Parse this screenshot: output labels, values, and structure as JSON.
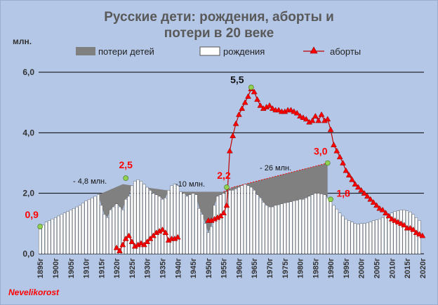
{
  "chart_data": {
    "type": "bar",
    "title_line1": "Русские дети: рождения, аборты  и",
    "title_line2": "потери в 20 веке",
    "ylabel": "млн.",
    "ylim": [
      0,
      6
    ],
    "yticks": [
      "0,0",
      "2,0",
      "4,0",
      "6,0"
    ],
    "legend": {
      "losses": "потери детей",
      "births": "рождения",
      "abortions": "аборты"
    },
    "x_labels": [
      "1895г",
      "1900г",
      "1905г",
      "1910г",
      "1915г",
      "1920г",
      "1925г",
      "1930г",
      "1935г",
      "1940г",
      "1945г",
      "1950г",
      "1955г",
      "1960г",
      "1965г",
      "1970г",
      "1975г",
      "1980г",
      "1985г",
      "1990г",
      "1995г",
      "2000г",
      "2005г",
      "2010г",
      "2015г",
      "2020г"
    ],
    "x_start": 1895,
    "births": [
      0.85,
      0.95,
      1.05,
      1.1,
      1.15,
      1.2,
      1.25,
      1.3,
      1.35,
      1.4,
      1.45,
      1.5,
      1.55,
      1.6,
      1.68,
      1.75,
      1.8,
      1.85,
      1.9,
      1.95,
      1.6,
      1.3,
      1.2,
      1.45,
      1.55,
      1.65,
      1.55,
      1.45,
      1.8,
      1.9,
      2.25,
      2.4,
      2.45,
      2.4,
      2.3,
      2.2,
      2.1,
      2.0,
      1.95,
      1.9,
      1.8,
      1.85,
      2.1,
      2.25,
      2.3,
      2.25,
      2.05,
      2.0,
      1.9,
      1.95,
      2.0,
      1.95,
      1.5,
      1.3,
      1.0,
      0.7,
      0.9,
      1.6,
      1.9,
      1.95,
      2.0,
      2.05,
      2.1,
      2.1,
      2.15,
      2.2,
      2.25,
      2.3,
      2.25,
      2.2,
      2.1,
      1.95,
      1.85,
      1.7,
      1.6,
      1.55,
      1.55,
      1.6,
      1.62,
      1.65,
      1.68,
      1.7,
      1.72,
      1.75,
      1.77,
      1.8,
      1.8,
      1.85,
      1.9,
      1.95,
      2.0,
      2.0,
      1.98,
      1.95,
      1.85,
      1.75,
      1.6,
      1.48,
      1.35,
      1.25,
      1.15,
      1.1,
      1.05,
      1.0,
      0.98,
      1.0,
      1.0,
      1.02,
      1.05,
      1.1,
      1.12,
      1.15,
      1.2,
      1.25,
      1.3,
      1.35,
      1.4,
      1.42,
      1.45,
      1.45,
      1.42,
      1.38,
      1.3,
      1.2,
      1.1
    ],
    "losses_upper": [
      {
        "x": 1895,
        "y": 0.85
      },
      {
        "x": 1914,
        "y": 1.95
      },
      {
        "x": 1922,
        "y": 2.3
      },
      {
        "x": 1940,
        "y": 2.05
      },
      {
        "x": 1955,
        "y": 2.05
      },
      {
        "x": 1958,
        "y": 2.2
      },
      {
        "x": 1989,
        "y": 3.0
      }
    ],
    "abortions": [
      {
        "x": 1920,
        "y": 0.2
      },
      {
        "x": 1921,
        "y": 0.1
      },
      {
        "x": 1922,
        "y": 0.3
      },
      {
        "x": 1923,
        "y": 0.5
      },
      {
        "x": 1924,
        "y": 0.6
      },
      {
        "x": 1925,
        "y": 0.4
      },
      {
        "x": 1926,
        "y": 0.25
      },
      {
        "x": 1927,
        "y": 0.3
      },
      {
        "x": 1928,
        "y": 0.35
      },
      {
        "x": 1929,
        "y": 0.3
      },
      {
        "x": 1930,
        "y": 0.4
      },
      {
        "x": 1931,
        "y": 0.5
      },
      {
        "x": 1932,
        "y": 0.6
      },
      {
        "x": 1933,
        "y": 0.7
      },
      {
        "x": 1934,
        "y": 0.75
      },
      {
        "x": 1935,
        "y": 0.8
      },
      {
        "x": 1936,
        "y": 0.7
      },
      {
        "x": 1937,
        "y": 0.45
      },
      {
        "x": 1938,
        "y": 0.5
      },
      {
        "x": 1939,
        "y": 0.5
      },
      {
        "x": 1940,
        "y": 0.55
      },
      {
        "x": 1950,
        "y": 1.1
      },
      {
        "x": 1951,
        "y": 1.1
      },
      {
        "x": 1952,
        "y": 1.15
      },
      {
        "x": 1953,
        "y": 1.2
      },
      {
        "x": 1954,
        "y": 1.25
      },
      {
        "x": 1955,
        "y": 1.35
      },
      {
        "x": 1956,
        "y": 1.6
      },
      {
        "x": 1957,
        "y": 3.4
      },
      {
        "x": 1958,
        "y": 3.9
      },
      {
        "x": 1959,
        "y": 4.3
      },
      {
        "x": 1960,
        "y": 4.6
      },
      {
        "x": 1961,
        "y": 4.8
      },
      {
        "x": 1962,
        "y": 5.0
      },
      {
        "x": 1963,
        "y": 5.2
      },
      {
        "x": 1964,
        "y": 5.45
      },
      {
        "x": 1965,
        "y": 5.35
      },
      {
        "x": 1966,
        "y": 5.1
      },
      {
        "x": 1967,
        "y": 4.9
      },
      {
        "x": 1968,
        "y": 4.8
      },
      {
        "x": 1969,
        "y": 4.85
      },
      {
        "x": 1970,
        "y": 4.9
      },
      {
        "x": 1971,
        "y": 4.8
      },
      {
        "x": 1972,
        "y": 4.75
      },
      {
        "x": 1973,
        "y": 4.75
      },
      {
        "x": 1974,
        "y": 4.7
      },
      {
        "x": 1975,
        "y": 4.7
      },
      {
        "x": 1976,
        "y": 4.75
      },
      {
        "x": 1977,
        "y": 4.75
      },
      {
        "x": 1978,
        "y": 4.7
      },
      {
        "x": 1979,
        "y": 4.65
      },
      {
        "x": 1980,
        "y": 4.55
      },
      {
        "x": 1981,
        "y": 4.5
      },
      {
        "x": 1982,
        "y": 4.45
      },
      {
        "x": 1983,
        "y": 4.35
      },
      {
        "x": 1984,
        "y": 4.4
      },
      {
        "x": 1985,
        "y": 4.55
      },
      {
        "x": 1986,
        "y": 4.4
      },
      {
        "x": 1987,
        "y": 4.6
      },
      {
        "x": 1988,
        "y": 4.4
      },
      {
        "x": 1989,
        "y": 4.45
      },
      {
        "x": 1990,
        "y": 4.1
      },
      {
        "x": 1991,
        "y": 3.6
      },
      {
        "x": 1992,
        "y": 3.4
      },
      {
        "x": 1993,
        "y": 3.2
      },
      {
        "x": 1994,
        "y": 3.0
      },
      {
        "x": 1995,
        "y": 2.75
      },
      {
        "x": 1996,
        "y": 2.6
      },
      {
        "x": 1997,
        "y": 2.45
      },
      {
        "x": 1998,
        "y": 2.3
      },
      {
        "x": 1999,
        "y": 2.2
      },
      {
        "x": 2000,
        "y": 2.1
      },
      {
        "x": 2001,
        "y": 2.0
      },
      {
        "x": 2002,
        "y": 1.9
      },
      {
        "x": 2003,
        "y": 1.8
      },
      {
        "x": 2004,
        "y": 1.7
      },
      {
        "x": 2005,
        "y": 1.6
      },
      {
        "x": 2006,
        "y": 1.5
      },
      {
        "x": 2007,
        "y": 1.45
      },
      {
        "x": 2008,
        "y": 1.35
      },
      {
        "x": 2009,
        "y": 1.25
      },
      {
        "x": 2010,
        "y": 1.15
      },
      {
        "x": 2011,
        "y": 1.1
      },
      {
        "x": 2012,
        "y": 1.05
      },
      {
        "x": 2013,
        "y": 1.0
      },
      {
        "x": 2014,
        "y": 0.95
      },
      {
        "x": 2015,
        "y": 0.85
      },
      {
        "x": 2016,
        "y": 0.85
      },
      {
        "x": 2017,
        "y": 0.8
      },
      {
        "x": 2018,
        "y": 0.7
      },
      {
        "x": 2019,
        "y": 0.65
      },
      {
        "x": 2020,
        "y": 0.6
      }
    ],
    "key_points": [
      {
        "label": "0,9",
        "x": 1895,
        "y": 0.9,
        "color": "#ff0000"
      },
      {
        "label": "2,5",
        "x": 1923,
        "y": 2.5,
        "color": "#ff0000"
      },
      {
        "label": "2,2",
        "x": 1956,
        "y": 2.2,
        "color": "#ff0000"
      },
      {
        "label": "5,5",
        "x": 1964,
        "y": 5.5,
        "color": "#111111"
      },
      {
        "label": "3,0",
        "x": 1989,
        "y": 3.0,
        "color": "#ff0000"
      },
      {
        "label": "1,8",
        "x": 1990,
        "y": 1.8,
        "color": "#ff0000"
      }
    ],
    "annotations": [
      "- 4,8 млн.",
      "-10 млн.",
      "- 26 млн."
    ],
    "colors": {
      "losses": "#808080",
      "births": "#ffffff",
      "abortions": "#c00000",
      "markers": "#ff0000",
      "keypoint": "#92d050",
      "background": "#b4c7e7"
    }
  },
  "unit_label": "млн.",
  "credit": "Nevelikorost"
}
